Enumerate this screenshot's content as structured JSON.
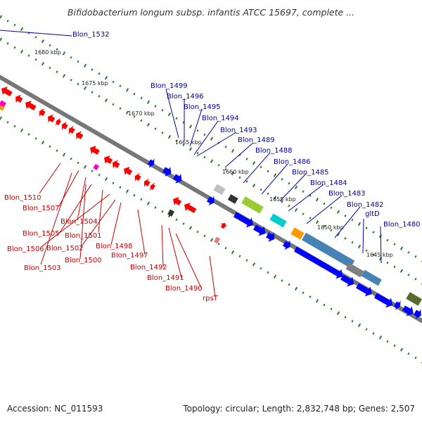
{
  "title": "Bifidobacterium longum subsp. infantis ATCC 15697, complete ...",
  "footer": {
    "accession": "Accession: NC_011593",
    "summary": "Topology: circular; Length: 2,832,748 bp; Genes: 2,507"
  },
  "colors": {
    "backbone": "#777777",
    "tick": "#2a7a2a",
    "forward_label": "#0000aa",
    "reverse_label": "#cc0000"
  },
  "scale_labels": [
    "1680 kbp",
    "1675 kbp",
    "1670 kbp",
    "1665 kbp",
    "1660 kbp",
    "1655 kbp",
    "1650 kbp",
    "1645 kbp"
  ],
  "forward_labels": [
    "Blon_1532",
    "Blon_1499",
    "Blon_1496",
    "Blon_1495",
    "Blon_1494",
    "Blon_1493",
    "Blon_1489",
    "Blon_1488",
    "Blon_1486",
    "Blon_1485",
    "Blon_1484",
    "Blon_1483",
    "Blon_1482",
    "gltD",
    "Blon_1480"
  ],
  "reverse_labels": [
    "Blon_1510",
    "Blon_1507",
    "Blon_1504",
    "Blon_1505",
    "Blon_1501",
    "Blon_1506",
    "Blon_1502",
    "Blon_1498",
    "Blon_1503",
    "Blon_1500",
    "Blon_1497",
    "Blon_1492",
    "Blon_1491",
    "Blon_1490",
    "rpsT"
  ],
  "feature_colors": [
    "#ff0000",
    "#0000ff",
    "#ff00cc",
    "#ff9900",
    "#99cc33",
    "#00cccc",
    "#4682b4",
    "#808080",
    "#c0c0c0",
    "#556b2f",
    "#333333"
  ]
}
